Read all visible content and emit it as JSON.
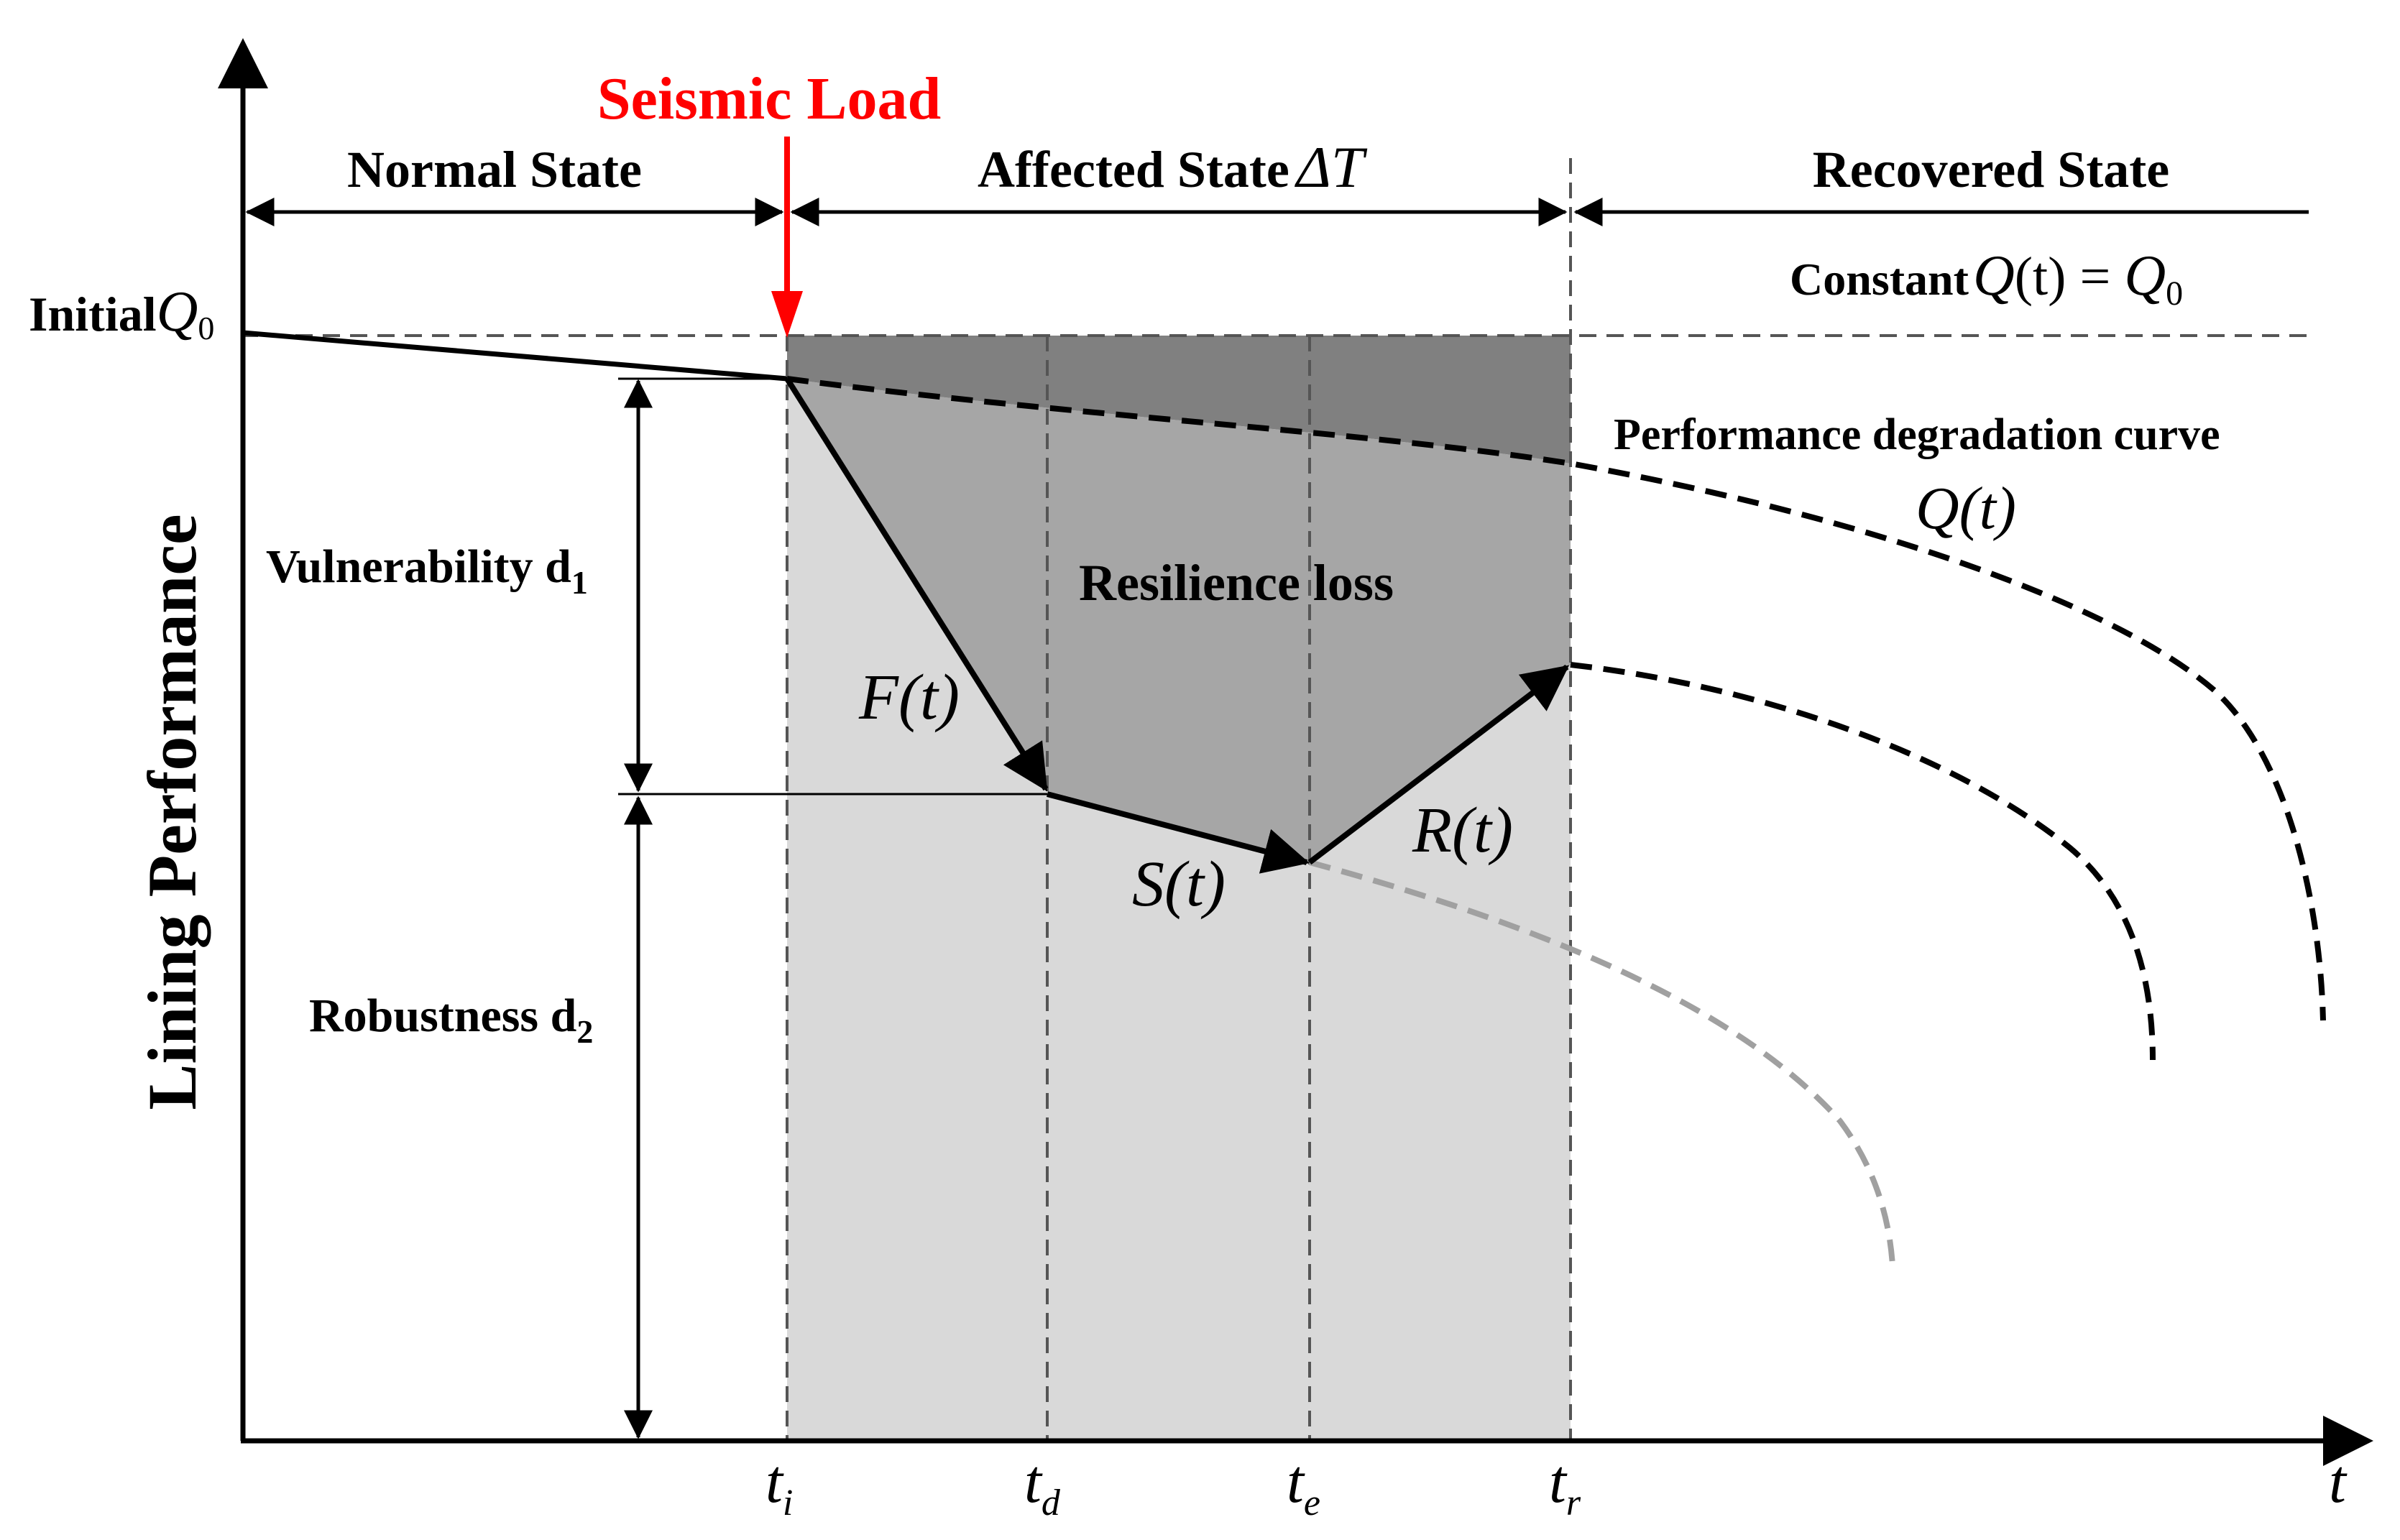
{
  "seismic_load": "Seismic Load",
  "states": {
    "normal": "Normal State",
    "affected": "Affected State",
    "affected_symbol": "ΔT",
    "recovered": "Recovered State"
  },
  "constant_label": "Constant",
  "constant_eq_left": "Q",
  "constant_eq_mid": "(t) = ",
  "constant_eq_right": "Q",
  "constant_eq_sub": "0",
  "initial_label": "Initial",
  "initial_symbol": "Q",
  "initial_sub": "0",
  "y_axis_label": "Lining Performance",
  "x_axis_symbol": "t",
  "vulnerability_label": "Vulnerability d",
  "vulnerability_sub": "1",
  "robustness_label": "Robustness d",
  "robustness_sub": "2",
  "resilience_loss": "Resilience loss",
  "degradation_label": "Performance degradation curve",
  "degradation_symbol": "Q(t)",
  "functions": {
    "f": "F(t)",
    "s": "S(t)",
    "r": "R(t)"
  },
  "ticks": [
    {
      "base": "t",
      "sub": "i"
    },
    {
      "base": "t",
      "sub": "d"
    },
    {
      "base": "t",
      "sub": "e"
    },
    {
      "base": "t",
      "sub": "r"
    }
  ],
  "colors": {
    "dark_loss": "#808080",
    "mid_loss": "#a6a6a6",
    "light_region": "#d9d9d9",
    "seismic_arrow": "#ff0000",
    "alt_curve": "#a0a0a0"
  }
}
